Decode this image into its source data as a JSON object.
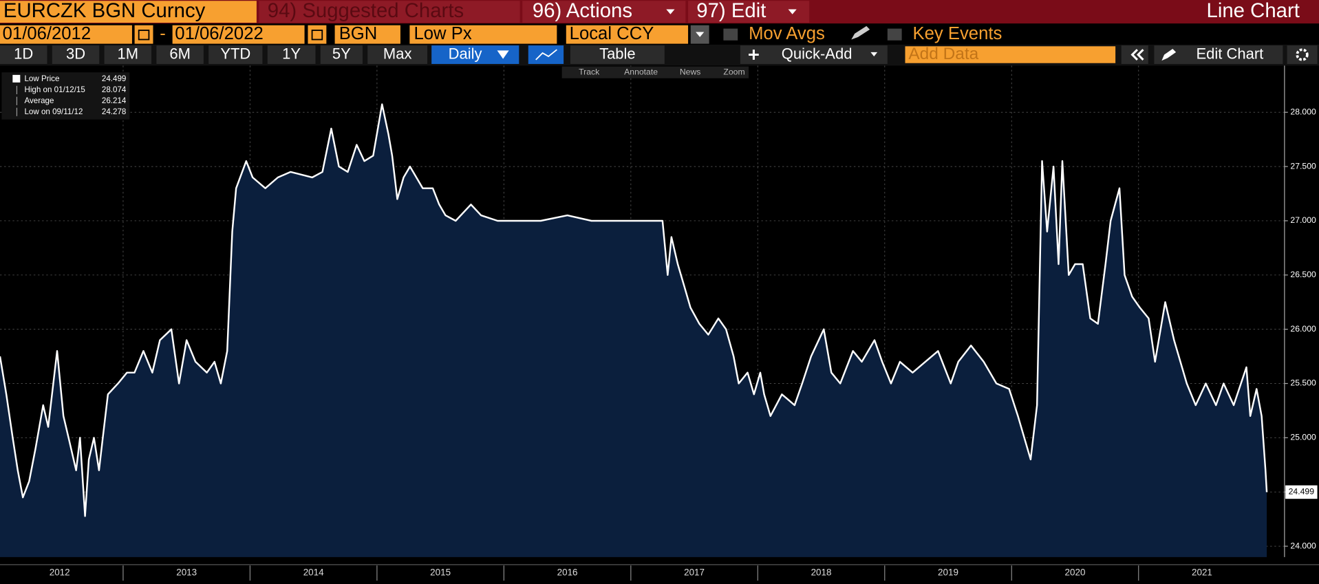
{
  "toolbar": {
    "security": "EURCZK BGN Curncy",
    "menus": [
      "94) Suggested Charts",
      "96) Actions",
      "97) Edit"
    ],
    "view": "Line Chart",
    "start_date": "01/06/2012",
    "separator": "-",
    "end_date": "01/06/2022",
    "source": "BGN",
    "field": "Low Px",
    "currency": "Local CCY",
    "options": [
      "Mov Avgs",
      "Key Events"
    ],
    "periods": [
      "1D",
      "3D",
      "1M",
      "6M",
      "YTD",
      "1Y",
      "5Y",
      "Max"
    ],
    "frequency": "Daily",
    "table": "Table",
    "quick_add": "Quick-Add",
    "add_data": "Add Data",
    "edit_chart": "Edit Chart",
    "tools": [
      "Track",
      "Annotate",
      "News",
      "Zoom"
    ]
  },
  "chart_data": {
    "type": "line",
    "fill": true,
    "fill_color": "#0b1f3d",
    "grid": true,
    "series": [
      {
        "name": "Low Price",
        "color": "#ffffff",
        "values": [
          25.75,
          25.4,
          25.0,
          24.7,
          24.45,
          24.6,
          24.9,
          25.3,
          25.1,
          25.8,
          25.2,
          25.0,
          24.7,
          25.0,
          24.278,
          24.8,
          25.0,
          24.7,
          25.0,
          25.4,
          25.5,
          25.6,
          25.6,
          25.8,
          25.6,
          25.9,
          26.0,
          25.5,
          25.9,
          25.7,
          25.6,
          25.7,
          25.5,
          25.8,
          26.9,
          27.3,
          27.55,
          27.4,
          27.3,
          27.4,
          27.45,
          27.4,
          27.45,
          27.85,
          27.5,
          27.45,
          27.7,
          27.55,
          27.6,
          28.074,
          27.8,
          27.6,
          27.2,
          27.4,
          27.5,
          27.3,
          27.3,
          27.15,
          27.05,
          27.0,
          27.15,
          27.05,
          27.0,
          27.0,
          27.0,
          27.05,
          27.0,
          27.0,
          27.0,
          26.5,
          26.85,
          26.6,
          26.4,
          26.2,
          26.05,
          25.95,
          26.1,
          26.0,
          25.75,
          25.5,
          25.6,
          25.4,
          25.6,
          25.4,
          25.2,
          25.4,
          25.3,
          25.5,
          25.75,
          26.0,
          25.6,
          25.5,
          25.8,
          25.7,
          25.9,
          25.7,
          25.5,
          25.7,
          25.6,
          25.7,
          25.8,
          25.5,
          25.7,
          25.85,
          25.7,
          25.5,
          25.45,
          25.2,
          24.8,
          25.3,
          27.55,
          26.9,
          27.5,
          26.6,
          27.55,
          26.5,
          26.6,
          26.6,
          26.1,
          26.05,
          26.6,
          27.0,
          27.3,
          26.5,
          26.3,
          26.2,
          26.1,
          25.7,
          26.25,
          25.9,
          25.5,
          25.3,
          25.5,
          25.3,
          25.5,
          25.3,
          25.65,
          25.2,
          25.45,
          25.2,
          24.7,
          24.499
        ]
      }
    ],
    "x": [
      2012.03,
      2012.08,
      2012.13,
      2012.17,
      2012.21,
      2012.26,
      2012.31,
      2012.37,
      2012.41,
      2012.48,
      2012.53,
      2012.57,
      2012.63,
      2012.66,
      2012.7,
      2012.73,
      2012.77,
      2012.81,
      2012.84,
      2012.88,
      2012.96,
      2013.03,
      2013.09,
      2013.16,
      2013.23,
      2013.29,
      2013.38,
      2013.44,
      2013.5,
      2013.57,
      2013.66,
      2013.72,
      2013.77,
      2013.82,
      2013.86,
      2013.89,
      2013.97,
      2014.02,
      2014.12,
      2014.22,
      2014.32,
      2014.49,
      2014.57,
      2014.64,
      2014.7,
      2014.77,
      2014.84,
      2014.9,
      2014.97,
      2015.04,
      2015.09,
      2015.12,
      2015.16,
      2015.21,
      2015.26,
      2015.36,
      2015.44,
      2015.49,
      2015.54,
      2015.62,
      2015.74,
      2015.82,
      2015.95,
      2016.09,
      2016.29,
      2016.5,
      2016.69,
      2016.95,
      2017.25,
      2017.29,
      2017.32,
      2017.37,
      2017.42,
      2017.47,
      2017.54,
      2017.61,
      2017.69,
      2017.75,
      2017.81,
      2017.85,
      2017.92,
      2017.97,
      2018.02,
      2018.05,
      2018.1,
      2018.19,
      2018.29,
      2018.35,
      2018.42,
      2018.52,
      2018.58,
      2018.65,
      2018.75,
      2018.82,
      2018.92,
      2018.98,
      2019.05,
      2019.12,
      2019.22,
      2019.32,
      2019.42,
      2019.52,
      2019.58,
      2019.68,
      2019.78,
      2019.88,
      2019.98,
      2020.05,
      2020.15,
      2020.2,
      2020.24,
      2020.28,
      2020.33,
      2020.37,
      2020.4,
      2020.45,
      2020.5,
      2020.56,
      2020.62,
      2020.68,
      2020.74,
      2020.78,
      2020.85,
      2020.89,
      2020.95,
      2021.01,
      2021.08,
      2021.13,
      2021.21,
      2021.28,
      2021.38,
      2021.45,
      2021.53,
      2021.61,
      2021.67,
      2021.75,
      2021.85,
      2021.88,
      2021.93,
      2021.97,
      2022.0,
      2022.01
    ],
    "xlim": [
      2012.03,
      2022.15
    ],
    "xticks": [
      2013,
      2014,
      2015,
      2016,
      2017,
      2018,
      2019,
      2020,
      2021
    ],
    "year_labels": [
      2012,
      2013,
      2014,
      2015,
      2016,
      2017,
      2018,
      2019,
      2020,
      2021
    ],
    "ylim": [
      23.9,
      28.43
    ],
    "yticks": [
      {
        "value": 24,
        "label": "24.000"
      },
      {
        "value": 24.5,
        "label": "24.500"
      },
      {
        "value": 25,
        "label": "25.000"
      },
      {
        "value": 25.5,
        "label": "25.500"
      },
      {
        "value": 26,
        "label": "26.000"
      },
      {
        "value": 26.5,
        "label": "26.500"
      },
      {
        "value": 27,
        "label": "27.000"
      },
      {
        "value": 27.5,
        "label": "27.500"
      },
      {
        "value": 28,
        "label": "28.000"
      }
    ],
    "legend_stats": [
      {
        "label": "High on 01/12/15",
        "value": 28.074
      },
      {
        "label": "Average",
        "value": 26.214
      },
      {
        "label": "Low on 09/11/12",
        "value": 24.278
      }
    ]
  }
}
